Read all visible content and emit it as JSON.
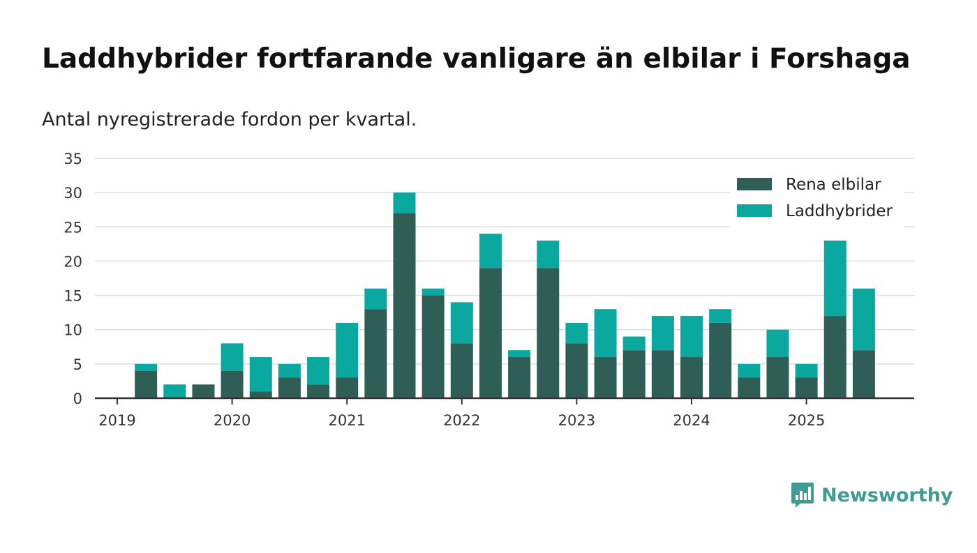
{
  "title": "Laddhybrider fortfarande vanligare än elbilar i Forshaga",
  "subtitle": "Antal nyregistrerade fordon per kvartal.",
  "brand": "Newsworthy",
  "colors": {
    "elbilar": "#2e5e55",
    "laddhybrider": "#0aa89e",
    "grid": "#dddddd",
    "axis": "#333333",
    "brand": "#3f9c93"
  },
  "chart_data": {
    "type": "bar",
    "stacked": true,
    "title": "Laddhybrider fortfarande vanligare än elbilar i Forshaga",
    "subtitle": "Antal nyregistrerade fordon per kvartal.",
    "xlabel": "",
    "ylabel": "",
    "ylim": [
      0,
      35
    ],
    "yticks": [
      0,
      5,
      10,
      15,
      20,
      25,
      30,
      35
    ],
    "x_tick_labels": [
      "2019",
      "2020",
      "2021",
      "2022",
      "2023",
      "2024",
      "2025"
    ],
    "legend_position": "top-right",
    "categories": [
      "2019 Q1",
      "2019 Q2",
      "2019 Q3",
      "2019 Q4",
      "2020 Q1",
      "2020 Q2",
      "2020 Q3",
      "2020 Q4",
      "2021 Q1",
      "2021 Q2",
      "2021 Q3",
      "2021 Q4",
      "2022 Q1",
      "2022 Q2",
      "2022 Q3",
      "2022 Q4",
      "2023 Q1",
      "2023 Q2",
      "2023 Q3",
      "2023 Q4",
      "2024 Q1",
      "2024 Q2",
      "2024 Q3",
      "2024 Q4",
      "2025 Q1",
      "2025 Q2",
      "2025 Q3"
    ],
    "series": [
      {
        "name": "Rena elbilar",
        "color": "#2e5e55",
        "values": [
          0,
          4,
          0,
          2,
          4,
          1,
          3,
          2,
          3,
          13,
          27,
          15,
          8,
          19,
          6,
          19,
          8,
          6,
          7,
          7,
          6,
          11,
          3,
          6,
          3,
          12,
          7
        ]
      },
      {
        "name": "Laddhybrider",
        "color": "#0aa89e",
        "values": [
          0,
          1,
          2,
          0,
          4,
          5,
          2,
          4,
          8,
          3,
          3,
          1,
          6,
          5,
          1,
          4,
          3,
          7,
          2,
          5,
          6,
          2,
          2,
          4,
          2,
          11,
          9
        ]
      }
    ]
  }
}
